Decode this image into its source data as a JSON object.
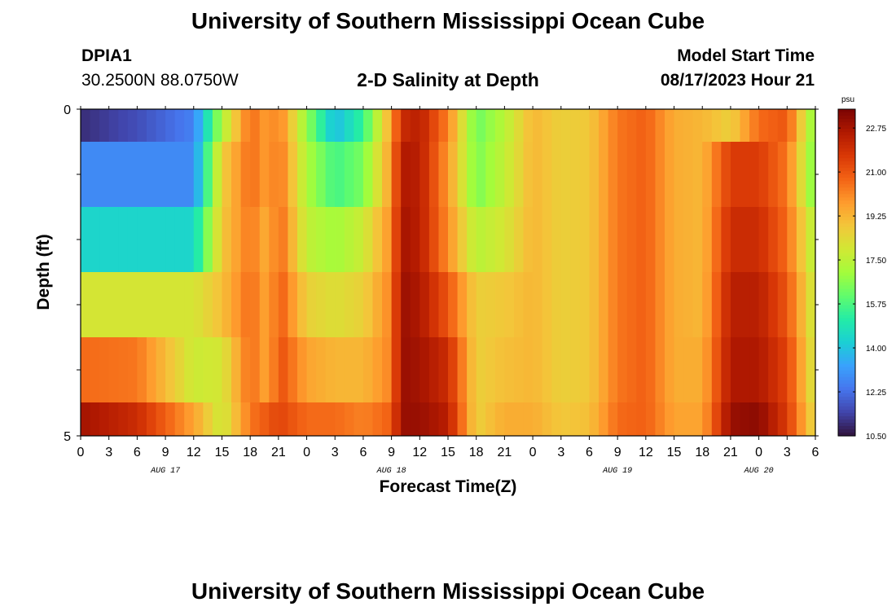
{
  "header": {
    "title": "University of Southern Mississippi Ocean Cube",
    "station_id": "DPIA1",
    "station_coords": "30.2500N  88.0750W",
    "plot_title": "2-D Salinity at Depth",
    "model_start_label": "Model Start Time",
    "model_start_value": "08/17/2023 Hour 21"
  },
  "footer": {
    "title": "University of Southern Mississippi Ocean Cube"
  },
  "colors": {
    "scale": [
      "#30123b",
      "#4145ab",
      "#4675ed",
      "#39a2fc",
      "#1bcfd4",
      "#24eca6",
      "#61fc6c",
      "#a4fc3b",
      "#d1e834",
      "#f3c63a",
      "#fe9b2d",
      "#f36315",
      "#d93806",
      "#b11901",
      "#7a0403"
    ]
  },
  "chart_data": {
    "type": "heatmap",
    "title": "2-D Salinity at Depth",
    "xlabel": "Forecast Time(Z)",
    "ylabel": "Depth (ft)",
    "y_ticks": [
      "0",
      "5"
    ],
    "ylim": [
      0,
      5
    ],
    "x_tick_labels": [
      "0",
      "3",
      "6",
      "9",
      "12",
      "15",
      "18",
      "21",
      "0",
      "3",
      "6",
      "9",
      "12",
      "15",
      "18",
      "21",
      "0",
      "3",
      "6",
      "9",
      "12",
      "15",
      "18",
      "21",
      "0",
      "3",
      "6"
    ],
    "date_labels": [
      "AUG 17",
      "AUG 18",
      "AUG 19",
      "AUG 20"
    ],
    "colorbar": {
      "unit": "psu",
      "min": 10.5,
      "max": 23.5,
      "tick_labels": [
        "22.75",
        "21.00",
        "19.25",
        "17.50",
        "15.75",
        "14.00",
        "12.25",
        "10.50"
      ]
    },
    "hours": [
      0,
      6,
      12,
      15,
      18,
      20,
      21,
      24,
      27,
      30,
      33,
      34,
      36,
      39,
      42,
      45,
      48,
      51,
      54,
      57,
      60,
      63,
      66,
      69,
      72,
      75,
      78
    ],
    "rows": [
      {
        "depth_band": "0.0-0.5",
        "values": [
          11.0,
          11.6,
          12.6,
          17.2,
          20.6,
          19.6,
          20.4,
          16.8,
          13.8,
          15.4,
          19.6,
          22.0,
          22.4,
          20.2,
          16.2,
          17.4,
          19.2,
          18.6,
          18.8,
          20.4,
          20.8,
          19.4,
          19.2,
          18.6,
          20.6,
          21.0,
          16.4
        ]
      },
      {
        "depth_band": "0.5-1.5",
        "values": [
          12.8,
          12.8,
          12.8,
          18.6,
          20.6,
          19.6,
          20.6,
          17.2,
          15.6,
          16.4,
          19.8,
          22.6,
          22.4,
          19.8,
          16.4,
          17.6,
          19.2,
          18.6,
          18.8,
          20.4,
          20.8,
          19.4,
          19.2,
          21.6,
          21.6,
          20.4,
          16.2
        ]
      },
      {
        "depth_band": "1.5-2.5",
        "values": [
          14.4,
          14.4,
          14.4,
          18.8,
          20.4,
          19.2,
          20.8,
          17.6,
          17.0,
          17.8,
          20.0,
          22.8,
          22.4,
          20.0,
          17.4,
          18.0,
          19.2,
          18.6,
          18.8,
          20.4,
          20.8,
          19.4,
          19.2,
          22.0,
          22.0,
          20.6,
          17.2
        ]
      },
      {
        "depth_band": "2.5-3.5",
        "values": [
          18.0,
          18.0,
          18.0,
          19.0,
          20.6,
          19.4,
          21.0,
          18.6,
          18.2,
          18.6,
          20.2,
          23.0,
          22.6,
          21.0,
          18.6,
          18.8,
          19.2,
          18.6,
          18.8,
          20.4,
          20.8,
          19.4,
          19.2,
          22.4,
          22.4,
          21.0,
          17.6
        ]
      },
      {
        "depth_band": "3.5-4.5",
        "values": [
          20.6,
          20.4,
          17.8,
          18.0,
          20.6,
          19.4,
          21.2,
          19.6,
          19.2,
          19.2,
          20.2,
          23.0,
          22.8,
          22.0,
          18.6,
          19.0,
          19.2,
          18.6,
          18.8,
          20.4,
          20.8,
          19.4,
          19.4,
          22.6,
          22.6,
          21.4,
          17.8
        ]
      },
      {
        "depth_band": "4.5-5.0",
        "values": [
          22.8,
          22.0,
          19.6,
          17.8,
          20.4,
          21.0,
          21.4,
          20.6,
          20.6,
          20.2,
          20.8,
          23.0,
          23.0,
          22.4,
          18.6,
          19.4,
          19.4,
          18.8,
          19.0,
          20.6,
          20.8,
          19.6,
          19.6,
          23.0,
          23.2,
          21.6,
          18.2
        ]
      }
    ]
  }
}
